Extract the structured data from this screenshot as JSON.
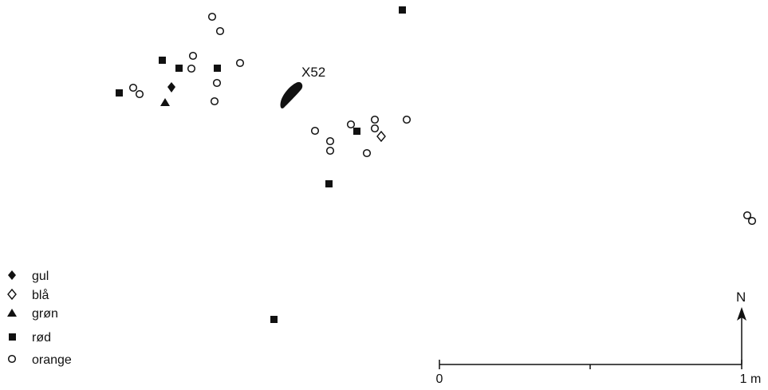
{
  "colors": {
    "ink": "#111111",
    "paper": "#ffffff"
  },
  "feature": {
    "label": "X52",
    "shape": "elongated-blob"
  },
  "legend": [
    {
      "symbol": "filled-diamond",
      "label": "gul"
    },
    {
      "symbol": "open-diamond",
      "label": "blå"
    },
    {
      "symbol": "filled-triangle",
      "label": "grøn"
    },
    {
      "symbol": "filled-square",
      "label": "rød"
    },
    {
      "symbol": "open-circle",
      "label": "orange"
    }
  ],
  "north_arrow": {
    "label": "N"
  },
  "scale_bar": {
    "start_label": "0",
    "end_label": "1 m"
  }
}
